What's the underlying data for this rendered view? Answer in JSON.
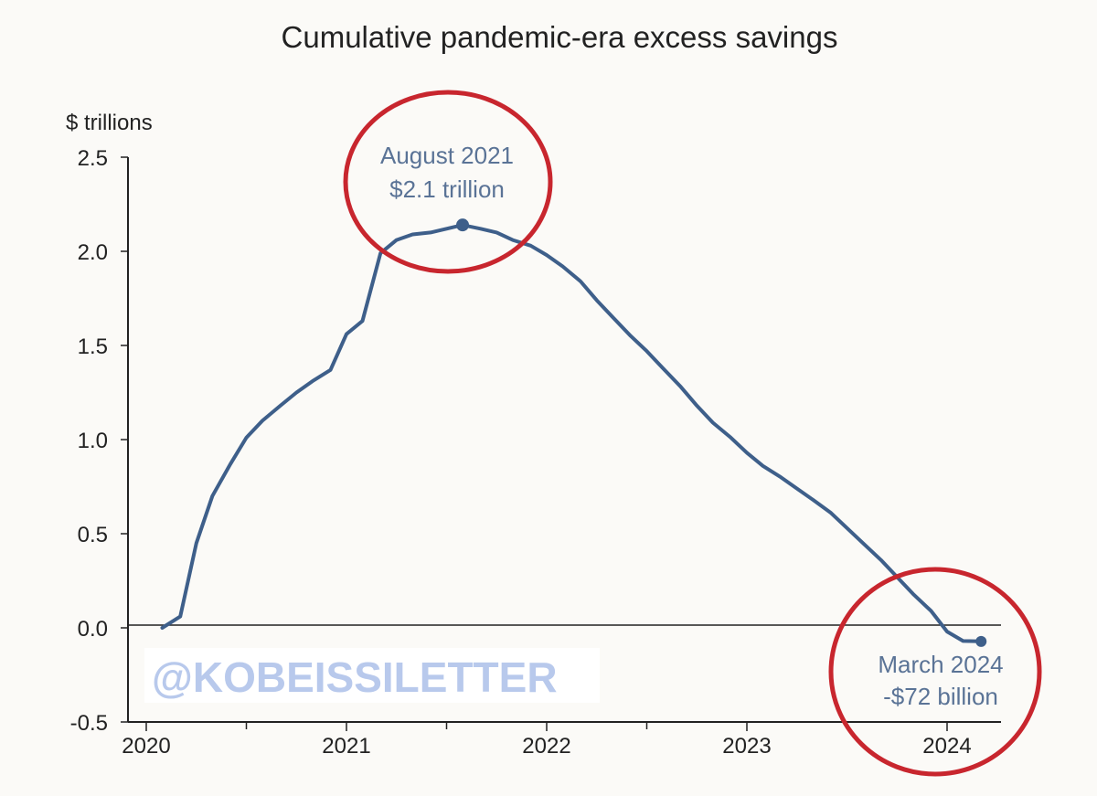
{
  "chart_data": {
    "type": "line",
    "title": "Cumulative pandemic-era excess savings",
    "ylabel": "$ trillions",
    "xlabel": "",
    "ylim": [
      -0.5,
      2.5
    ],
    "xlim": [
      2020.0,
      2024.3
    ],
    "y_ticks": [
      "2.5",
      "2.0",
      "1.5",
      "1.0",
      "0.5",
      "0.0",
      "-0.5"
    ],
    "y_tick_values": [
      2.5,
      2.0,
      1.5,
      1.0,
      0.5,
      0.0,
      -0.5
    ],
    "x_ticks": [
      "2020",
      "2021",
      "2022",
      "2023",
      "2024"
    ],
    "x_tick_values": [
      2020,
      2021,
      2022,
      2023,
      2024
    ],
    "grid": false,
    "series": [
      {
        "color": "#3e5f8a",
        "x": [
          2020.08,
          2020.17,
          2020.25,
          2020.33,
          2020.42,
          2020.5,
          2020.58,
          2020.67,
          2020.75,
          2020.83,
          2020.92,
          2021.0,
          2021.08,
          2021.17,
          2021.25,
          2021.33,
          2021.42,
          2021.5,
          2021.58,
          2021.67,
          2021.75,
          2021.83,
          2021.92,
          2022.0,
          2022.08,
          2022.17,
          2022.25,
          2022.33,
          2022.42,
          2022.5,
          2022.58,
          2022.67,
          2022.75,
          2022.83,
          2022.92,
          2023.0,
          2023.08,
          2023.17,
          2023.25,
          2023.33,
          2023.42,
          2023.5,
          2023.58,
          2023.67,
          2023.75,
          2023.83,
          2023.92,
          2024.0,
          2024.08,
          2024.17
        ],
        "y": [
          0.0,
          0.06,
          0.45,
          0.7,
          0.87,
          1.01,
          1.1,
          1.18,
          1.25,
          1.31,
          1.37,
          1.56,
          1.63,
          1.99,
          2.06,
          2.09,
          2.1,
          2.12,
          2.14,
          2.12,
          2.1,
          2.06,
          2.03,
          1.98,
          1.92,
          1.84,
          1.74,
          1.65,
          1.55,
          1.47,
          1.38,
          1.28,
          1.18,
          1.09,
          1.01,
          0.93,
          0.86,
          0.8,
          0.74,
          0.68,
          0.61,
          0.53,
          0.45,
          0.36,
          0.27,
          0.18,
          0.09,
          -0.02,
          -0.07,
          -0.072
        ]
      }
    ],
    "markers": [
      {
        "x": 2021.58,
        "y": 2.14
      },
      {
        "x": 2024.17,
        "y": -0.072
      }
    ],
    "annotations": [
      {
        "line1": "August 2021",
        "line2": "$2.1 trillion"
      },
      {
        "line1": "March 2024",
        "line2": "-$72 billion"
      }
    ],
    "watermark": "@KOBEISSILETTER",
    "colors": {
      "line": "#3e5f8a",
      "annotation_text": "#5a7396",
      "circle": "#c8262e",
      "axis": "#222222",
      "watermark": "#b8c9ec",
      "background": "#fbfaf7"
    }
  }
}
